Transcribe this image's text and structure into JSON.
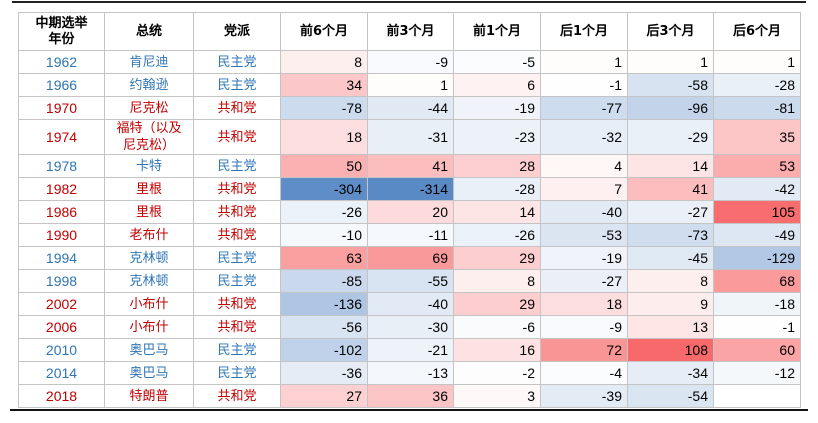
{
  "chart_data": {
    "type": "table",
    "columns": [
      "中期选举年份",
      "总统",
      "党派",
      "前6个月",
      "前3个月",
      "前1个月",
      "后1个月",
      "后3个月",
      "后6个月"
    ],
    "rows": [
      {
        "year": "1962",
        "president": "肯尼迪",
        "party": "民主党",
        "values": [
          8,
          -9,
          -5,
          1,
          1,
          1
        ]
      },
      {
        "year": "1966",
        "president": "约翰逊",
        "party": "民主党",
        "values": [
          34,
          1,
          6,
          -1,
          -58,
          -28
        ]
      },
      {
        "year": "1970",
        "president": "尼克松",
        "party": "共和党",
        "values": [
          -78,
          -44,
          -19,
          -77,
          -96,
          -81
        ]
      },
      {
        "year": "1974",
        "president": "福特（以及尼克松）",
        "party": "共和党",
        "values": [
          18,
          -31,
          -23,
          -32,
          -29,
          35
        ]
      },
      {
        "year": "1978",
        "president": "卡特",
        "party": "民主党",
        "values": [
          50,
          41,
          28,
          4,
          14,
          53
        ]
      },
      {
        "year": "1982",
        "president": "里根",
        "party": "共和党",
        "values": [
          -304,
          -314,
          -28,
          7,
          41,
          -42
        ]
      },
      {
        "year": "1986",
        "president": "里根",
        "party": "共和党",
        "values": [
          -26,
          20,
          14,
          -40,
          -27,
          105
        ]
      },
      {
        "year": "1990",
        "president": "老布什",
        "party": "共和党",
        "values": [
          -10,
          -11,
          -26,
          -53,
          -73,
          -49
        ]
      },
      {
        "year": "1994",
        "president": "克林顿",
        "party": "民主党",
        "values": [
          63,
          69,
          29,
          -19,
          -45,
          -129
        ]
      },
      {
        "year": "1998",
        "president": "克林顿",
        "party": "民主党",
        "values": [
          -85,
          -55,
          8,
          -27,
          8,
          68
        ]
      },
      {
        "year": "2002",
        "president": "小布什",
        "party": "共和党",
        "values": [
          -136,
          -40,
          29,
          18,
          9,
          -18
        ]
      },
      {
        "year": "2006",
        "president": "小布什",
        "party": "共和党",
        "values": [
          -56,
          -30,
          -6,
          -9,
          13,
          -1
        ]
      },
      {
        "year": "2010",
        "president": "奥巴马",
        "party": "民主党",
        "values": [
          -102,
          -21,
          16,
          72,
          108,
          60
        ]
      },
      {
        "year": "2014",
        "president": "奥巴马",
        "party": "民主党",
        "values": [
          -36,
          -13,
          -2,
          -4,
          -34,
          -12
        ]
      },
      {
        "year": "2018",
        "president": "特朗普",
        "party": "共和党",
        "values": [
          27,
          36,
          3,
          -39,
          -54,
          null
        ]
      }
    ],
    "color_scale": {
      "positive": "#f8696b",
      "zero": "#ffffff",
      "negative": "#5a8ac6"
    },
    "party_colors": {
      "民主党": "#2e75b6",
      "共和党": "#c00000"
    }
  }
}
